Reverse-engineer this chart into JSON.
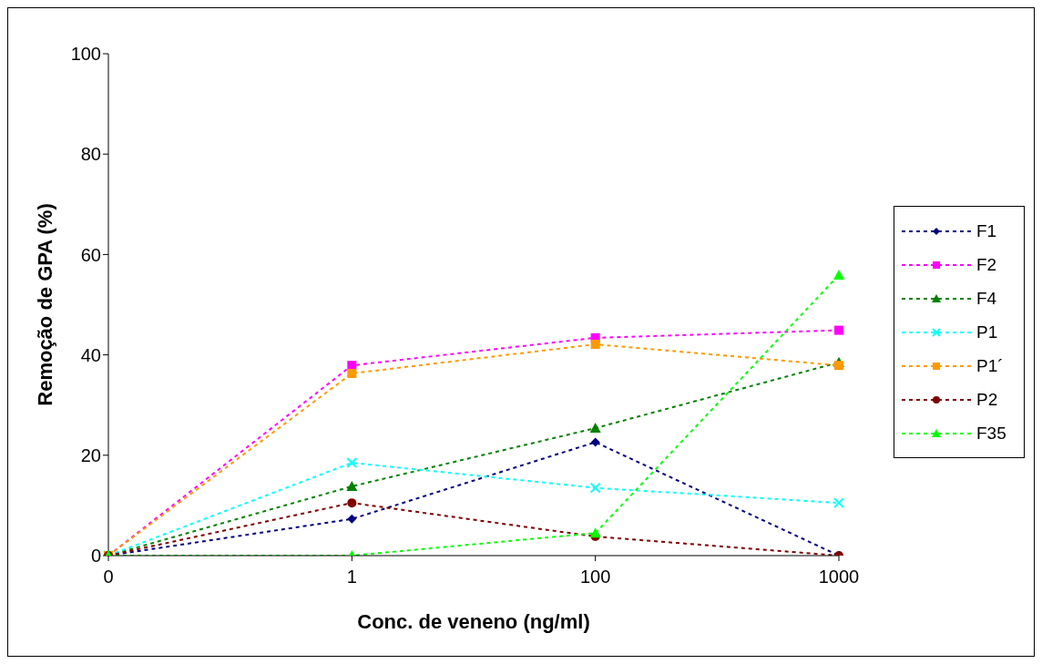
{
  "chart_data": {
    "type": "line",
    "xlabel": "Conc. de veneno (ng/ml)",
    "ylabel": "Remoção de GPA (%)",
    "categories": [
      "0",
      "1",
      "100",
      "1000"
    ],
    "series": [
      {
        "name": "F1",
        "color": "#000080",
        "marker": "diamond",
        "values": [
          0,
          7.3,
          22.6,
          0
        ]
      },
      {
        "name": "F2",
        "color": "#ff00ff",
        "marker": "square",
        "values": [
          0,
          37.9,
          43.4,
          44.9
        ]
      },
      {
        "name": "F4",
        "color": "#008000",
        "marker": "triangle",
        "values": [
          0,
          13.8,
          25.4,
          38.5
        ]
      },
      {
        "name": "P1",
        "color": "#00ffff",
        "marker": "cross",
        "values": [
          0,
          18.5,
          13.5,
          10.5
        ]
      },
      {
        "name": "P1´",
        "color": "#ff9900",
        "marker": "square",
        "values": [
          0,
          36.3,
          42.1,
          37.9
        ]
      },
      {
        "name": "P2",
        "color": "#800000",
        "marker": "circle",
        "values": [
          0,
          10.5,
          3.8,
          0
        ]
      },
      {
        "name": "F35",
        "color": "#00ff00",
        "marker": "triangle",
        "values": [
          0,
          0,
          4.5,
          55.9
        ]
      }
    ],
    "ylim": [
      0,
      100
    ],
    "yticks": [
      0,
      20,
      40,
      60,
      80,
      100
    ],
    "grid": false,
    "legend": "right",
    "line_style": "dashed"
  }
}
